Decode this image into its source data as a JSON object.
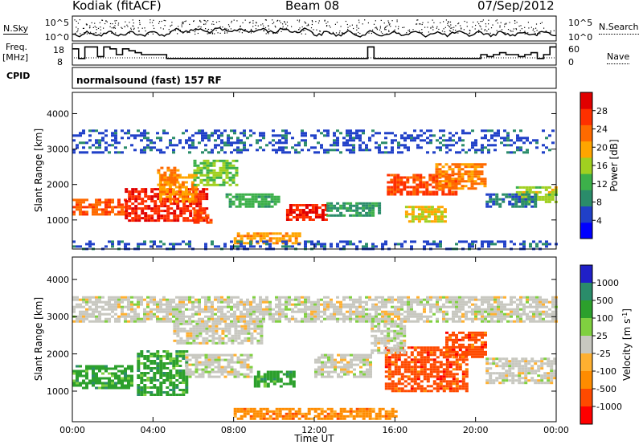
{
  "header": {
    "station": "Kodiak (fitACF)",
    "beam": "Beam 08",
    "date": "07/Sep/2012"
  },
  "side_labels": {
    "nsky": "N.Sky",
    "freq_line1": "Freq.",
    "freq_line2": "[MHz]",
    "cpid": "CPID",
    "nsearch": "N.Search",
    "nave": "Nave"
  },
  "strip_ticks": {
    "noise_top": "10^5",
    "noise_bottom": "10^0",
    "freq_top": "18",
    "freq_bottom": "8",
    "nave_top": "60",
    "nave_bottom": "0"
  },
  "cpid_text": "normalsound (fast) 157 RF",
  "colors": {
    "power": [
      "#0000ff",
      "#2040c8",
      "#2a8c6a",
      "#3cb04a",
      "#a0d020",
      "#ffa500",
      "#ff6a00",
      "#ff3000",
      "#e00000"
    ],
    "velocity": [
      "#ff0000",
      "#ff4a00",
      "#ff8c00",
      "#ffb030",
      "#c8c8c0",
      "#80d040",
      "#2ca02c",
      "#2a8c6a",
      "#2020c8"
    ]
  },
  "chart_data": [
    {
      "type": "heatmap",
      "panel": "power",
      "xlabel": "",
      "ylabel": "Slant Range [km]",
      "xlim": [
        0,
        24
      ],
      "ylim": [
        180,
        4600
      ],
      "x_ticks": [
        "00:00",
        "04:00",
        "08:00",
        "12:00",
        "16:00",
        "20:00",
        "00:00"
      ],
      "y_ticks": [
        "1000",
        "2000",
        "3000",
        "4000"
      ],
      "y_tick_values": [
        1000,
        2000,
        3000,
        4000
      ],
      "colorbar": {
        "label": "Power [dB]",
        "range": [
          0,
          32
        ],
        "ticks": [
          "4",
          "8",
          "12",
          "16",
          "20",
          "24",
          "28"
        ],
        "tick_values": [
          4,
          8,
          12,
          16,
          20,
          24,
          28
        ]
      },
      "echo_regions": [
        {
          "t": [
            0.0,
            2.6
          ],
          "r": [
            1150,
            1600
          ],
          "value": 24
        },
        {
          "t": [
            2.6,
            6.6
          ],
          "r": [
            1000,
            1900
          ],
          "value": 28
        },
        {
          "t": [
            4.3,
            6.2
          ],
          "r": [
            1500,
            2300
          ],
          "value": 20
        },
        {
          "t": [
            6.0,
            8.2
          ],
          "r": [
            2000,
            2700
          ],
          "value": 14
        },
        {
          "t": [
            4.2,
            5.2
          ],
          "r": [
            2000,
            2500
          ],
          "value": 22
        },
        {
          "t": [
            6.0,
            6.8
          ],
          "r": [
            900,
            1300
          ],
          "value": 26
        },
        {
          "t": [
            7.6,
            10.3
          ],
          "r": [
            1350,
            1750
          ],
          "value": 12
        },
        {
          "t": [
            10.6,
            12.6
          ],
          "r": [
            1000,
            1450
          ],
          "value": 28
        },
        {
          "t": [
            12.6,
            15.2
          ],
          "r": [
            1100,
            1500
          ],
          "value": 10
        },
        {
          "t": [
            8.0,
            11.2
          ],
          "r": [
            350,
            650
          ],
          "value": 20
        },
        {
          "t": [
            0.0,
            24.0
          ],
          "r": [
            200,
            420
          ],
          "value": 6
        },
        {
          "t": [
            15.6,
            19.0
          ],
          "r": [
            1700,
            2300
          ],
          "value": 26
        },
        {
          "t": [
            18.0,
            20.4
          ],
          "r": [
            1900,
            2600
          ],
          "value": 22
        },
        {
          "t": [
            16.5,
            18.5
          ],
          "r": [
            950,
            1400
          ],
          "value": 18
        },
        {
          "t": [
            22.0,
            24.0
          ],
          "r": [
            1500,
            1950
          ],
          "value": 16
        },
        {
          "t": [
            20.5,
            23.0
          ],
          "r": [
            1350,
            1750
          ],
          "value": 8
        },
        {
          "t": [
            0.0,
            24.0
          ],
          "r": [
            2900,
            3550
          ],
          "value": 6
        }
      ]
    },
    {
      "type": "heatmap",
      "panel": "velocity",
      "xlabel": "Time UT",
      "ylabel": "Slant Range [km]",
      "xlim": [
        0,
        24
      ],
      "ylim": [
        180,
        4600
      ],
      "x_ticks": [
        "00:00",
        "04:00",
        "08:00",
        "12:00",
        "16:00",
        "20:00",
        "00:00"
      ],
      "y_ticks": [
        "1000",
        "2000",
        "3000",
        "4000"
      ],
      "y_tick_values": [
        1000,
        2000,
        3000,
        4000
      ],
      "colorbar": {
        "label": "Velocity [m s^-1]",
        "ticks": [
          "1000",
          "500",
          "100",
          "25",
          "-25",
          "-100",
          "-500",
          "-1000"
        ]
      },
      "echo_regions": [
        {
          "t": [
            3.2,
            5.6
          ],
          "r": [
            900,
            2100
          ],
          "value": 200
        },
        {
          "t": [
            5.6,
            8.8
          ],
          "r": [
            1400,
            2000
          ],
          "value": 0
        },
        {
          "t": [
            5.0,
            9.4
          ],
          "r": [
            2300,
            2900
          ],
          "value": 0
        },
        {
          "t": [
            0.0,
            3.0
          ],
          "r": [
            1100,
            1700
          ],
          "value": 300
        },
        {
          "t": [
            9.0,
            11.0
          ],
          "r": [
            1100,
            1550
          ],
          "value": 150
        },
        {
          "t": [
            12.0,
            14.8
          ],
          "r": [
            1400,
            2000
          ],
          "value": 0
        },
        {
          "t": [
            15.5,
            19.5
          ],
          "r": [
            1000,
            2200
          ],
          "value": -600
        },
        {
          "t": [
            18.5,
            20.5
          ],
          "r": [
            1900,
            2600
          ],
          "value": -600
        },
        {
          "t": [
            14.8,
            16.4
          ],
          "r": [
            2000,
            2900
          ],
          "value": 0
        },
        {
          "t": [
            20.5,
            24.0
          ],
          "r": [
            1200,
            1900
          ],
          "value": 0
        },
        {
          "t": [
            8.0,
            16.0
          ],
          "r": [
            250,
            550
          ],
          "value": -150
        },
        {
          "t": [
            0.0,
            24.0
          ],
          "r": [
            2900,
            3550
          ],
          "value": 0
        }
      ]
    }
  ]
}
